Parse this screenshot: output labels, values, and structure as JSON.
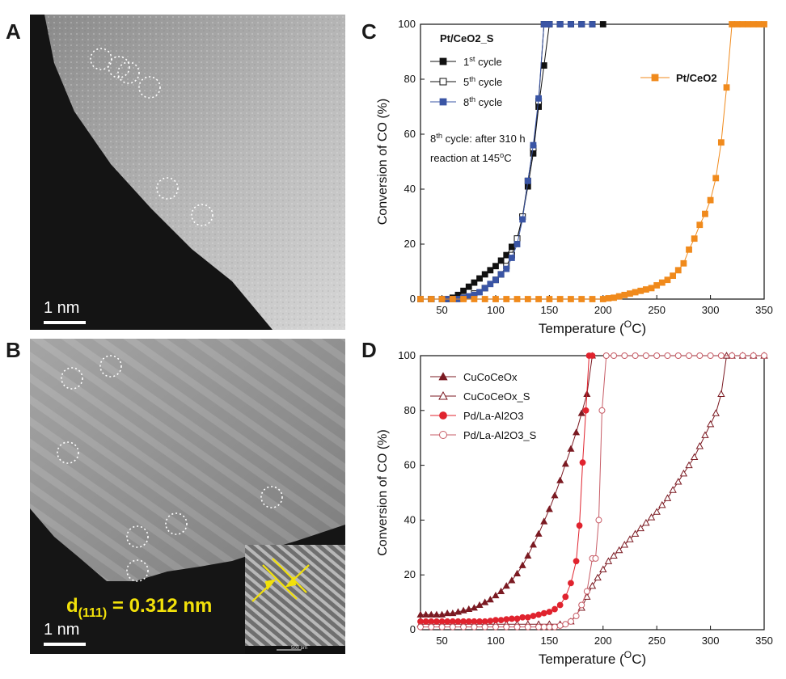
{
  "panels": {
    "A": {
      "letter": "A",
      "scale_label": "1 nm"
    },
    "B": {
      "letter": "B",
      "scale_label": "1 nm",
      "dspacing_label": "d(111) = 0.312 nm",
      "dspacing_sub": "(111)",
      "dspacing_value": " = 0.312 nm",
      "inset_scale_label": "500 pm"
    },
    "C": {
      "letter": "C"
    },
    "D": {
      "letter": "D"
    }
  },
  "colors": {
    "black": "#111111",
    "blue": "#3a55a5",
    "orange": "#f08a1c",
    "darkred": "#7b1a22",
    "red": "#e0232e",
    "pink": "#c75d67"
  },
  "chart_data": [
    {
      "id": "C",
      "type": "line",
      "xlabel": "Temperature (oC)",
      "ylabel": "Conversion of CO (%)",
      "xlim": [
        30,
        350
      ],
      "ylim": [
        0,
        100
      ],
      "xticks": [
        50,
        100,
        150,
        200,
        250,
        300,
        350
      ],
      "yticks": [
        0,
        20,
        40,
        60,
        80,
        100
      ],
      "legend_title": "Pt/CeO2_S",
      "annotation_lines": [
        "8th cycle: after 310 h",
        "reaction at 145oC"
      ],
      "series": [
        {
          "name": "1st cycle",
          "color": "#111111",
          "marker": "square-filled",
          "x": [
            30,
            40,
            50,
            55,
            60,
            65,
            70,
            75,
            80,
            85,
            90,
            95,
            100,
            105,
            110,
            115,
            120,
            125,
            130,
            135,
            140,
            145,
            150,
            160,
            170,
            180,
            190,
            200
          ],
          "y": [
            0,
            0,
            0,
            0,
            0.5,
            1.5,
            3,
            4.5,
            6,
            7.5,
            9,
            10.5,
            12,
            14,
            16,
            19,
            22,
            30,
            41,
            53,
            70,
            85,
            100,
            100,
            100,
            100,
            100,
            100
          ]
        },
        {
          "name": "5th cycle",
          "color": "#111111",
          "marker": "square-open",
          "x": [
            30,
            40,
            50,
            60,
            70,
            80,
            90,
            100,
            105,
            110,
            115,
            120,
            125,
            130,
            135,
            140,
            145,
            150,
            160,
            170,
            180,
            190
          ],
          "y": [
            0,
            0,
            0,
            0,
            0.5,
            2,
            4,
            7,
            9,
            12,
            16,
            22,
            30,
            43,
            55,
            72,
            100,
            100,
            100,
            100,
            100,
            100
          ]
        },
        {
          "name": "8th cycle",
          "color": "#3a55a5",
          "marker": "square-filled",
          "x": [
            30,
            40,
            50,
            55,
            60,
            65,
            70,
            75,
            80,
            85,
            90,
            95,
            100,
            105,
            110,
            115,
            120,
            125,
            130,
            135,
            140,
            145,
            150,
            160,
            170,
            180,
            190
          ],
          "y": [
            0,
            0,
            0,
            0,
            0,
            0,
            0.5,
            1,
            1.5,
            2.5,
            4,
            5.5,
            7,
            9,
            11,
            15,
            20,
            29,
            43,
            56,
            73,
            100,
            100,
            100,
            100,
            100,
            100
          ]
        },
        {
          "name": "Pt/CeO2",
          "color": "#f08a1c",
          "marker": "square-filled",
          "x": [
            30,
            40,
            50,
            60,
            70,
            80,
            90,
            100,
            110,
            120,
            130,
            140,
            150,
            160,
            170,
            180,
            190,
            200,
            205,
            210,
            215,
            220,
            225,
            230,
            235,
            240,
            245,
            250,
            255,
            260,
            265,
            270,
            275,
            280,
            285,
            290,
            295,
            300,
            305,
            310,
            315,
            320,
            325,
            330,
            335,
            340,
            345,
            350
          ],
          "y": [
            0,
            0,
            0,
            0,
            0,
            0,
            0,
            0,
            0,
            0,
            0,
            0,
            0,
            0,
            0,
            0,
            0,
            0,
            0.3,
            0.5,
            1,
            1.5,
            2,
            2.5,
            3,
            3.5,
            4,
            5,
            6,
            7,
            8.5,
            10.5,
            13,
            18,
            22,
            27,
            31,
            36,
            44,
            57,
            77,
            100,
            100,
            100,
            100,
            100,
            100,
            100
          ]
        }
      ]
    },
    {
      "id": "D",
      "type": "line",
      "xlabel": "Temperature (oC)",
      "ylabel": "Conversion of CO (%)",
      "xlim": [
        30,
        350
      ],
      "ylim": [
        0,
        100
      ],
      "xticks": [
        50,
        100,
        150,
        200,
        250,
        300,
        350
      ],
      "yticks": [
        0,
        20,
        40,
        60,
        80,
        100
      ],
      "series": [
        {
          "name": "CuCoCeOx",
          "color": "#7b1a22",
          "marker": "triangle-filled",
          "x": [
            30,
            35,
            40,
            45,
            50,
            55,
            60,
            65,
            70,
            75,
            80,
            85,
            90,
            95,
            100,
            105,
            110,
            115,
            120,
            125,
            130,
            135,
            140,
            145,
            150,
            155,
            160,
            165,
            170,
            175,
            180,
            185,
            190
          ],
          "y": [
            5.5,
            5.5,
            5.5,
            5.5,
            5.5,
            6,
            6,
            6.5,
            7,
            7.5,
            8,
            9,
            10,
            11,
            12.5,
            14,
            16,
            18,
            20.5,
            23.5,
            27,
            31,
            35,
            39.5,
            44,
            49,
            54.5,
            60.5,
            66,
            72,
            79,
            86,
            100
          ]
        },
        {
          "name": "CuCoCeOx_S",
          "color": "#7b1a22",
          "marker": "triangle-open",
          "x": [
            30,
            40,
            50,
            60,
            70,
            80,
            90,
            100,
            110,
            120,
            130,
            140,
            150,
            160,
            170,
            180,
            185,
            190,
            195,
            200,
            205,
            210,
            215,
            220,
            225,
            230,
            235,
            240,
            245,
            250,
            255,
            260,
            265,
            270,
            275,
            280,
            285,
            290,
            295,
            300,
            305,
            310,
            315,
            320,
            330,
            340,
            350
          ],
          "y": [
            2,
            2,
            2,
            2,
            2,
            2,
            2,
            2,
            2,
            2,
            2,
            2,
            2,
            2,
            3,
            8,
            12,
            16,
            19,
            22,
            25,
            27,
            29,
            31,
            33,
            35,
            37,
            39,
            41,
            43,
            45.5,
            48,
            51,
            54,
            57,
            60,
            63,
            67,
            71,
            75,
            79,
            86,
            100,
            100,
            100,
            100,
            100
          ]
        },
        {
          "name": "Pd/La-Al2O3",
          "color": "#e0232e",
          "marker": "circle-filled",
          "x": [
            30,
            35,
            40,
            45,
            50,
            55,
            60,
            65,
            70,
            75,
            80,
            85,
            90,
            95,
            100,
            105,
            110,
            115,
            120,
            125,
            130,
            135,
            140,
            145,
            150,
            155,
            160,
            165,
            170,
            175,
            178,
            181,
            184,
            187,
            190
          ],
          "y": [
            3,
            3,
            3,
            3,
            3,
            3,
            3,
            3,
            3,
            3,
            3,
            3,
            3,
            3.2,
            3.5,
            3.5,
            3.8,
            4,
            4,
            4.5,
            4.5,
            5,
            5.5,
            6,
            6.5,
            7.5,
            9,
            12,
            17,
            25,
            38,
            61,
            80,
            100,
            100
          ]
        },
        {
          "name": "Pd/La-Al2O3_S",
          "color": "#c75d67",
          "marker": "circle-open",
          "x": [
            30,
            40,
            50,
            60,
            70,
            80,
            90,
            100,
            110,
            120,
            130,
            140,
            145,
            150,
            155,
            160,
            165,
            170,
            175,
            180,
            185,
            190,
            193,
            196,
            199,
            203,
            210,
            220,
            230,
            240,
            250,
            260,
            270,
            280,
            290,
            300,
            310,
            320,
            330,
            340,
            350
          ],
          "y": [
            1,
            1,
            1,
            1,
            1,
            1,
            1,
            1,
            1,
            1,
            1,
            1,
            1,
            1,
            1,
            1.5,
            2,
            3,
            5,
            9,
            14,
            26,
            26,
            40,
            80,
            100,
            100,
            100,
            100,
            100,
            100,
            100,
            100,
            100,
            100,
            100,
            100,
            100,
            100,
            100,
            100
          ]
        }
      ]
    }
  ]
}
